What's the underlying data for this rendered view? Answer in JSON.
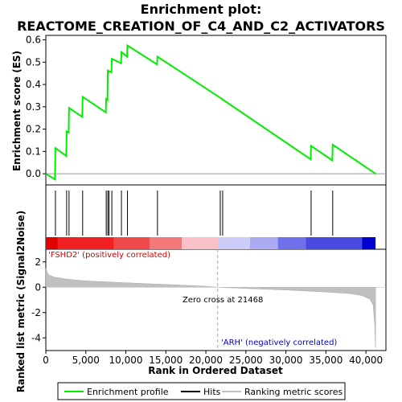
{
  "chart_data": {
    "type": "line",
    "title": "Enrichment plot:",
    "subtitle": "REACTOME_CREATION_OF_C4_AND_C2_ACTIVATORS",
    "top_panel": {
      "ylabel": "Enrichment score (ES)",
      "ylim": [
        -0.05,
        0.62
      ],
      "yticks": [
        0.0,
        0.1,
        0.2,
        0.3,
        0.4,
        0.5,
        0.6
      ],
      "ytick_labels": [
        "0.0",
        "0.1",
        "0.2",
        "0.3",
        "0.4",
        "0.5",
        "0.6"
      ],
      "series": [
        {
          "name": "Enrichment profile",
          "color": "#00ee00",
          "x": [
            0,
            1150,
            1200,
            2550,
            2600,
            2850,
            2900,
            4550,
            4600,
            7500,
            7550,
            7700,
            7750,
            7850,
            7900,
            8200,
            8250,
            9400,
            9450,
            10150,
            10200,
            13900,
            13950,
            21800,
            22200,
            33100,
            33150,
            35800,
            35850,
            41200
          ],
          "y": [
            0.0,
            -0.025,
            0.115,
            0.08,
            0.19,
            0.185,
            0.295,
            0.255,
            0.345,
            0.275,
            0.335,
            0.33,
            0.46,
            0.455,
            0.46,
            0.455,
            0.515,
            0.495,
            0.545,
            0.525,
            0.575,
            0.49,
            0.525,
            0.34,
            0.33,
            0.065,
            0.125,
            0.06,
            0.13,
            0.0
          ]
        }
      ]
    },
    "hits": [
      1200,
      2600,
      2900,
      4600,
      7550,
      7750,
      7900,
      8250,
      9450,
      10200,
      13950,
      21800,
      22100,
      33150,
      35850
    ],
    "bottom_panel": {
      "ylabel": "Ranked list metric (Signal2Noise)",
      "xlabel": "Rank in Ordered Dataset",
      "xlim": [
        0,
        42500
      ],
      "ylim": [
        -5,
        3
      ],
      "yticks": [
        -4,
        -2,
        0,
        2
      ],
      "ytick_labels": [
        "-4",
        "-2",
        "0",
        "2"
      ],
      "xticks": [
        0,
        5000,
        10000,
        15000,
        20000,
        25000,
        30000,
        35000,
        40000
      ],
      "xtick_labels": [
        "0",
        "5,000",
        "10,000",
        "15,000",
        "20,000",
        "25,000",
        "30,000",
        "35,000",
        "40,000"
      ],
      "metric_profile": {
        "x": [
          0,
          300,
          1000,
          2500,
          5000,
          10000,
          15000,
          20000,
          21468,
          25000,
          30000,
          35000,
          38000,
          39500,
          40500,
          40900,
          41100,
          41200
        ],
        "y": [
          1.5,
          1.0,
          0.8,
          0.65,
          0.5,
          0.35,
          0.22,
          0.08,
          0.0,
          -0.1,
          -0.22,
          -0.38,
          -0.5,
          -0.65,
          -0.95,
          -1.4,
          -3.0,
          -4.8
        ]
      },
      "zero_cross_rank": 21468,
      "annotations": {
        "positive": "'FSHD2' (positively correlated)",
        "negative": "'ARH' (negatively correlated)",
        "zero_cross": "Zero cross at 21468"
      }
    },
    "heatmap_bar": {
      "segments": [
        {
          "end": 1500,
          "color": "#e00000"
        },
        {
          "end": 8500,
          "color": "#f02020"
        },
        {
          "end": 13000,
          "color": "#f04a4a"
        },
        {
          "end": 17000,
          "color": "#f57878"
        },
        {
          "end": 21500,
          "color": "#fac0c8"
        },
        {
          "end": 25500,
          "color": "#ccccf8"
        },
        {
          "end": 29000,
          "color": "#aaaaf2"
        },
        {
          "end": 32500,
          "color": "#7070ea"
        },
        {
          "end": 39500,
          "color": "#4a4ae0"
        },
        {
          "end": 41200,
          "color": "#0000d0"
        }
      ]
    },
    "legend": {
      "placement": "bottom",
      "items": [
        {
          "label": "Enrichment profile",
          "color": "#00ee00"
        },
        {
          "label": "Hits",
          "color": "#000000"
        },
        {
          "label": "Ranking metric scores",
          "color": "#c0c0c0"
        }
      ]
    }
  }
}
